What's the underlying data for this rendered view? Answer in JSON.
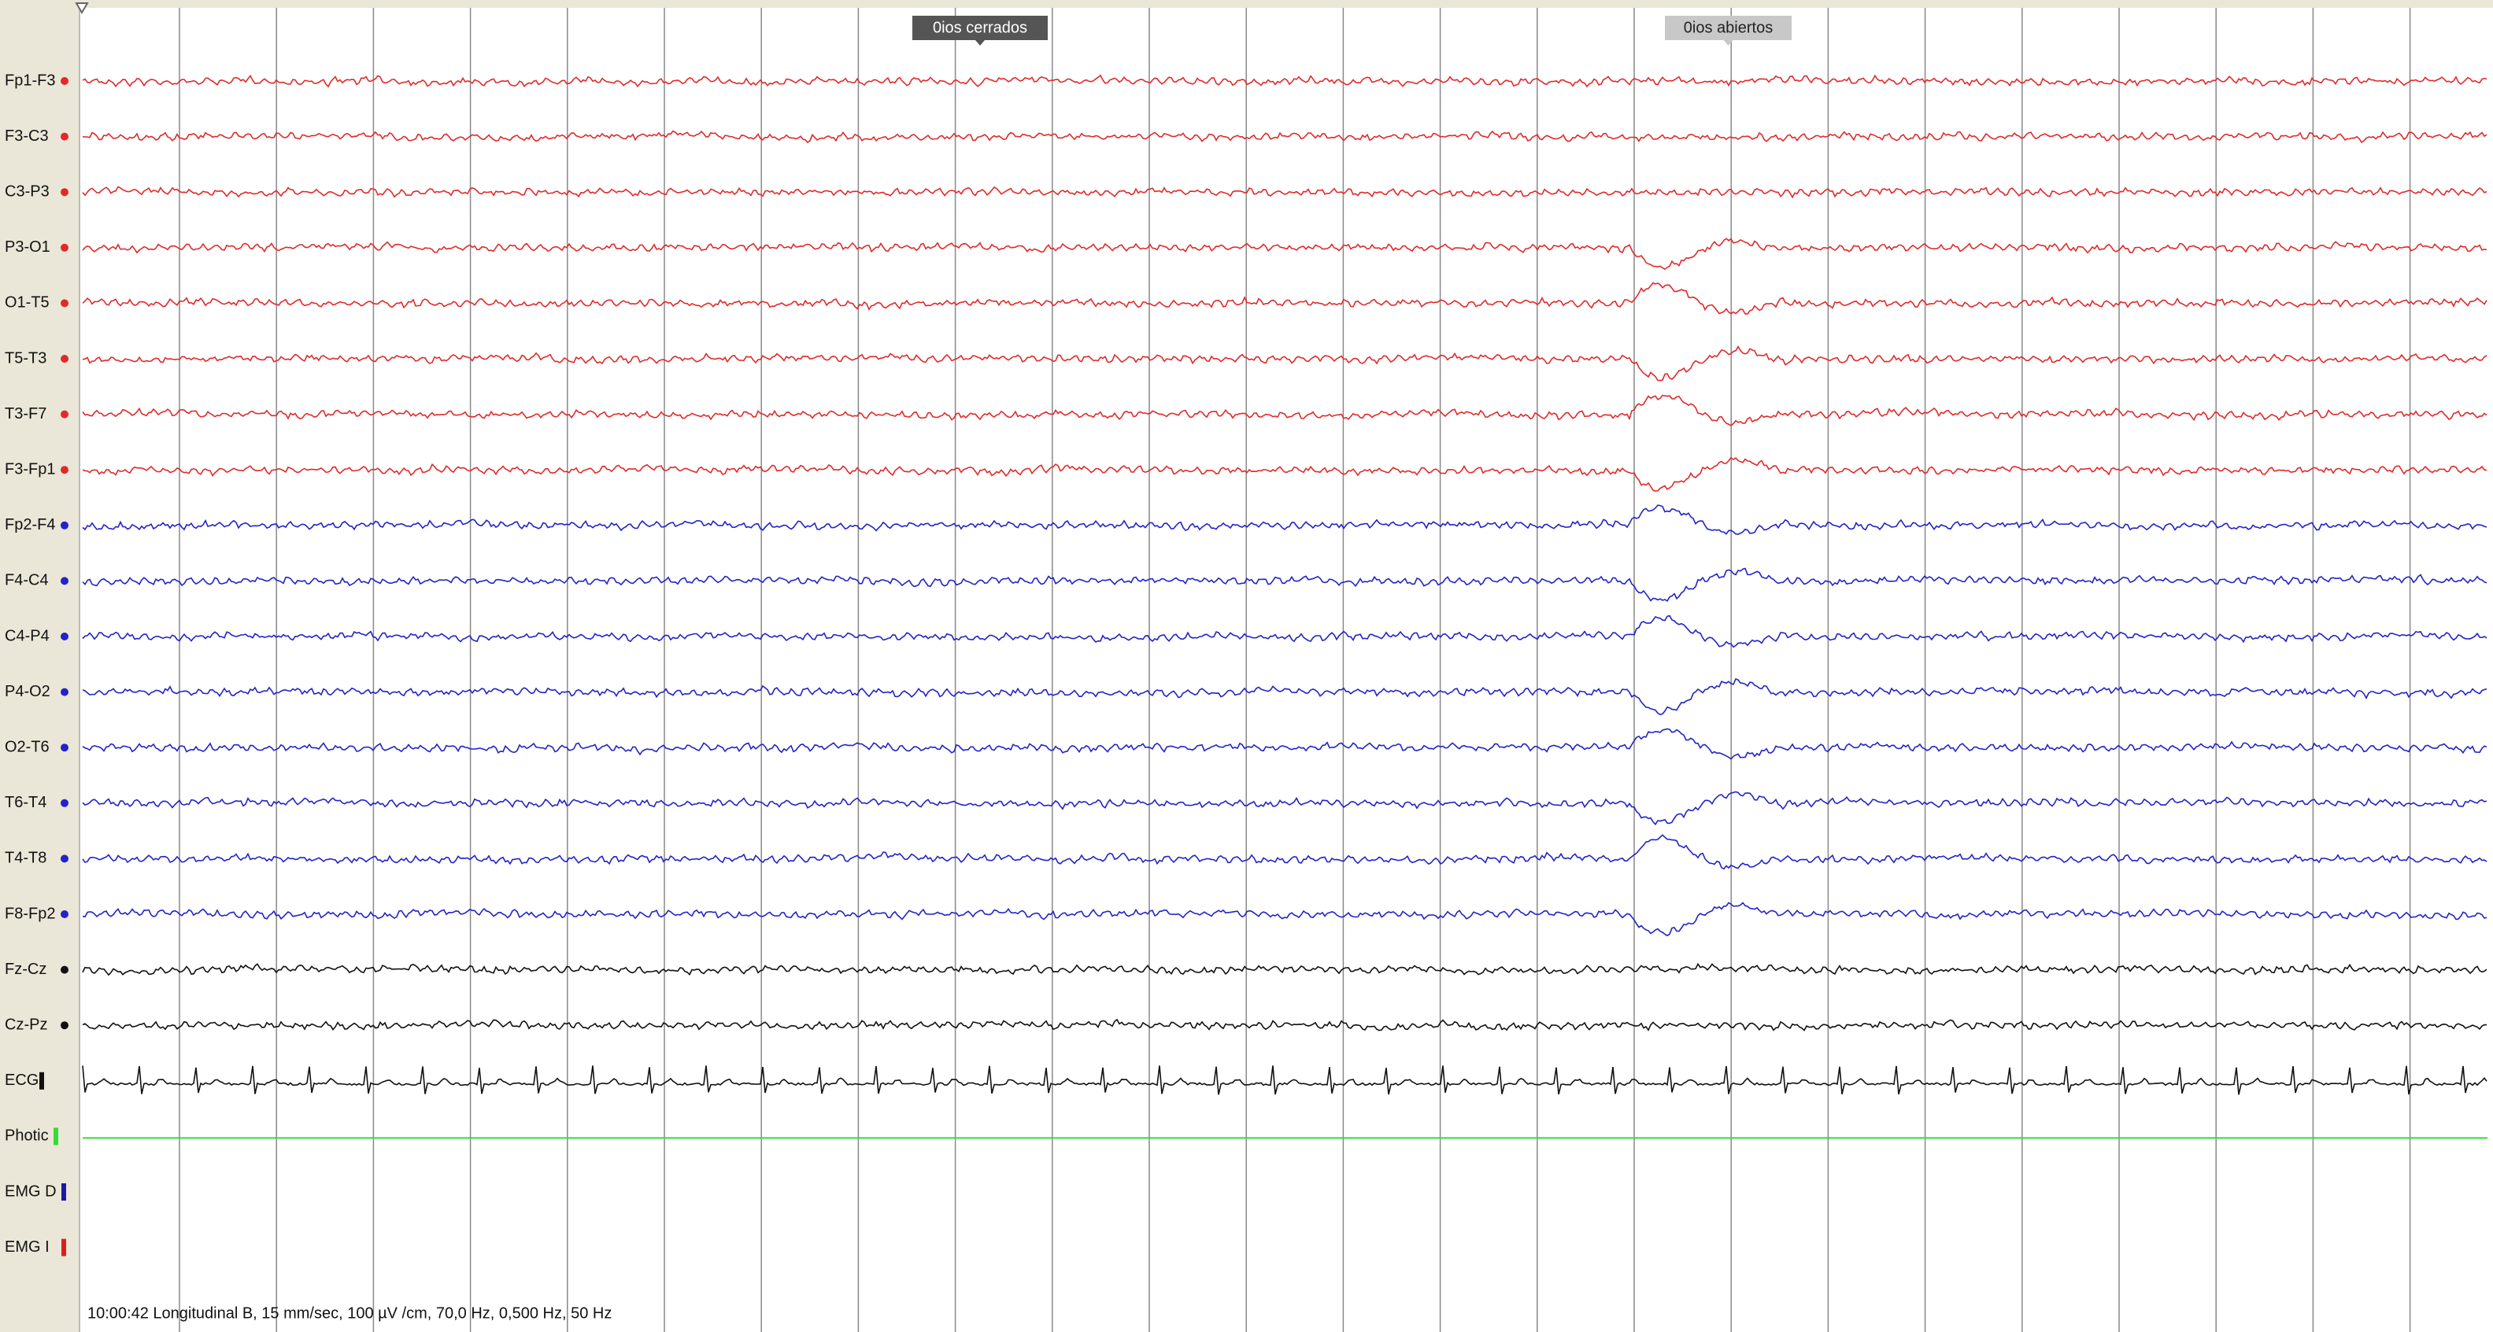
{
  "channels": [
    {
      "label": "Fp1-F3",
      "color": "#e02a2a"
    },
    {
      "label": "F3-C3",
      "color": "#e02a2a"
    },
    {
      "label": "C3-P3",
      "color": "#e02a2a"
    },
    {
      "label": "P3-O1",
      "color": "#e02a2a"
    },
    {
      "label": "O1-T5",
      "color": "#e02a2a"
    },
    {
      "label": "T5-T3",
      "color": "#e02a2a"
    },
    {
      "label": "T3-F7",
      "color": "#e02a2a"
    },
    {
      "label": "F3-Fp1",
      "color": "#e02a2a"
    },
    {
      "label": "Fp2-F4",
      "color": "#2323c8"
    },
    {
      "label": "F4-C4",
      "color": "#2323c8"
    },
    {
      "label": "C4-P4",
      "color": "#2323c8"
    },
    {
      "label": "P4-O2",
      "color": "#2323c8"
    },
    {
      "label": "O2-T6",
      "color": "#2323c8"
    },
    {
      "label": "T6-T4",
      "color": "#2323c8"
    },
    {
      "label": "T4-T8",
      "color": "#2323c8"
    },
    {
      "label": "F8-Fp2",
      "color": "#2323c8"
    },
    {
      "label": "Fz-Cz",
      "color": "#111111"
    },
    {
      "label": "Cz-Pz",
      "color": "#111111"
    },
    {
      "label": "ECG",
      "color": "#111111"
    },
    {
      "label": "Photic",
      "color": "#33dd33"
    },
    {
      "label": "EMG D",
      "color": "#1a1aa8"
    },
    {
      "label": "EMG I",
      "color": "#d82020"
    }
  ],
  "annotations": [
    {
      "label": "0ios cerrados"
    },
    {
      "label": "0ios abiertos"
    }
  ],
  "footer": "10:00:42 Longitudinal B, 15 mm/sec, 100 µV /cm, 70,0 Hz, 0,500 Hz, 50 Hz"
}
